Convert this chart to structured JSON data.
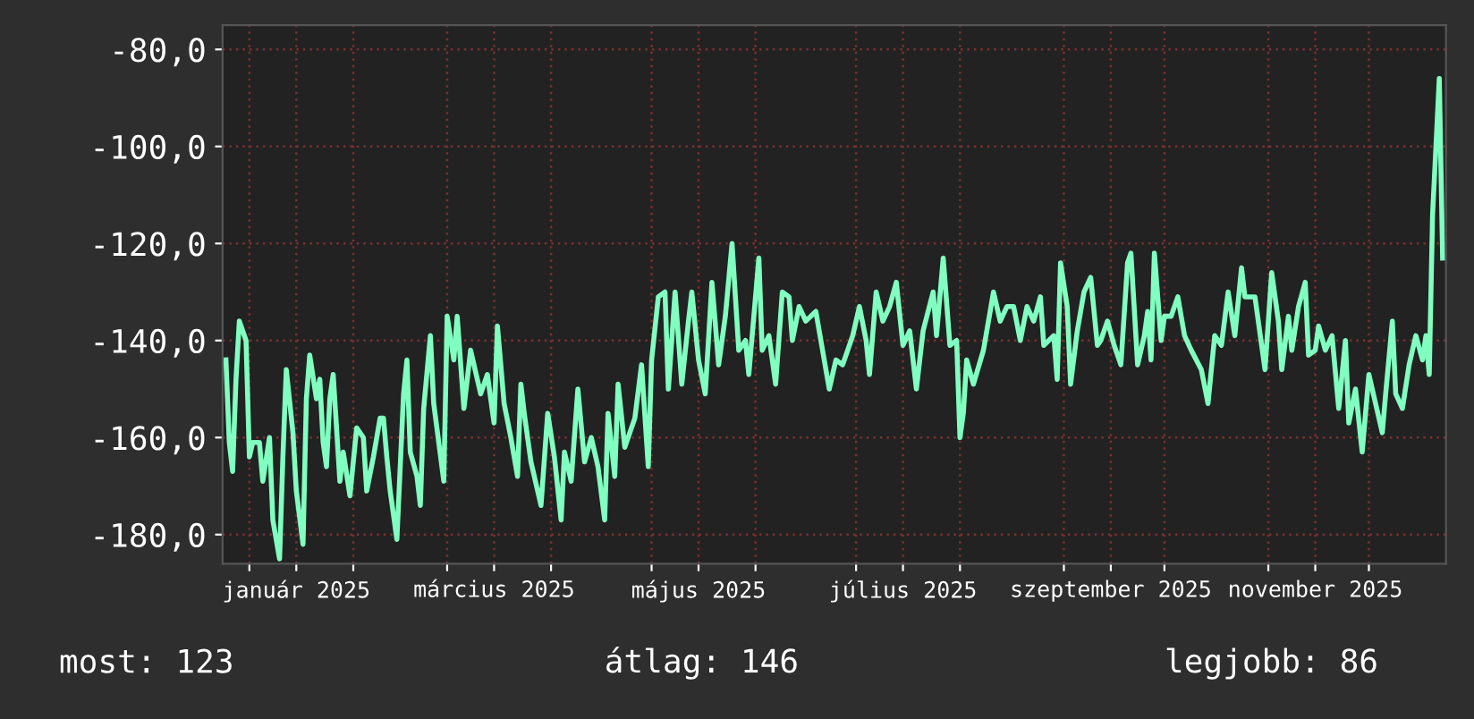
{
  "chart_data": {
    "type": "line",
    "color": "#80ffc0",
    "line_style": "solid",
    "marker": "none",
    "grid": true,
    "xlim": [
      "2024-12-24",
      "2025-12-24"
    ],
    "xticks": [
      {
        "value": "2025-01-01",
        "label": null
      },
      {
        "value": "2025-01-15",
        "label": "január 2025"
      },
      {
        "value": "2025-02-01",
        "label": null
      },
      {
        "value": "2025-03-01",
        "label": null
      },
      {
        "value": "2025-03-15",
        "label": "március 2025"
      },
      {
        "value": "2025-04-01",
        "label": null
      },
      {
        "value": "2025-05-01",
        "label": null
      },
      {
        "value": "2025-05-15",
        "label": "május 2025"
      },
      {
        "value": "2025-06-01",
        "label": null
      },
      {
        "value": "2025-07-01",
        "label": null
      },
      {
        "value": "2025-07-15",
        "label": "július 2025"
      },
      {
        "value": "2025-08-01",
        "label": null
      },
      {
        "value": "2025-09-01",
        "label": null
      },
      {
        "value": "2025-09-15",
        "label": "szeptember 2025"
      },
      {
        "value": "2025-10-01",
        "label": null
      },
      {
        "value": "2025-11-01",
        "label": null
      },
      {
        "value": "2025-11-15",
        "label": "november 2025"
      },
      {
        "value": "2025-12-01",
        "label": null
      }
    ],
    "ylim": [
      -186,
      -75
    ],
    "yticks": [
      {
        "value": -80,
        "label": "-80,0"
      },
      {
        "value": -100,
        "label": "-100,0"
      },
      {
        "value": -120,
        "label": "-120,0"
      },
      {
        "value": -140,
        "label": "-140,0"
      },
      {
        "value": -160,
        "label": "-160,0"
      },
      {
        "value": -180,
        "label": "-180,0"
      }
    ],
    "annotations": [
      "most: 123",
      "átlag: 146",
      "legjobb: 86"
    ],
    "x": [
      "2024-12-25",
      "2024-12-26",
      "2024-12-27",
      "2024-12-28",
      "2024-12-29",
      "2024-12-31",
      "2025-01-01",
      "2025-01-02",
      "2025-01-04",
      "2025-01-05",
      "2025-01-07",
      "2025-01-08",
      "2025-01-10",
      "2025-01-11",
      "2025-01-12",
      "2025-01-14",
      "2025-01-15",
      "2025-01-17",
      "2025-01-18",
      "2025-01-19",
      "2025-01-21",
      "2025-01-22",
      "2025-01-23",
      "2025-01-24",
      "2025-01-25",
      "2025-01-26",
      "2025-01-28",
      "2025-01-29",
      "2025-01-31",
      "2025-02-02",
      "2025-02-04",
      "2025-02-05",
      "2025-02-07",
      "2025-02-09",
      "2025-02-10",
      "2025-02-11",
      "2025-02-12",
      "2025-02-14",
      "2025-02-16",
      "2025-02-17",
      "2025-02-18",
      "2025-02-20",
      "2025-02-21",
      "2025-02-22",
      "2025-02-24",
      "2025-02-25",
      "2025-02-28",
      "2025-03-01",
      "2025-03-03",
      "2025-03-04",
      "2025-03-06",
      "2025-03-08",
      "2025-03-11",
      "2025-03-13",
      "2025-03-15",
      "2025-03-16",
      "2025-03-18",
      "2025-03-20",
      "2025-03-22",
      "2025-03-23",
      "2025-03-24",
      "2025-03-26",
      "2025-03-29",
      "2025-03-31",
      "2025-04-02",
      "2025-04-04",
      "2025-04-05",
      "2025-04-07",
      "2025-04-09",
      "2025-04-11",
      "2025-04-13",
      "2025-04-15",
      "2025-04-17",
      "2025-04-18",
      "2025-04-20",
      "2025-04-21",
      "2025-04-23",
      "2025-04-26",
      "2025-04-28",
      "2025-04-30",
      "2025-05-01",
      "2025-05-03",
      "2025-05-05",
      "2025-05-06",
      "2025-05-08",
      "2025-05-10",
      "2025-05-12",
      "2025-05-13",
      "2025-05-15",
      "2025-05-17",
      "2025-05-19",
      "2025-05-21",
      "2025-05-23",
      "2025-05-25",
      "2025-05-27",
      "2025-05-29",
      "2025-05-30",
      "2025-06-02",
      "2025-06-03",
      "2025-06-05",
      "2025-06-07",
      "2025-06-09",
      "2025-06-11",
      "2025-06-12",
      "2025-06-14",
      "2025-06-16",
      "2025-06-19",
      "2025-06-21",
      "2025-06-23",
      "2025-06-25",
      "2025-06-27",
      "2025-06-30",
      "2025-07-02",
      "2025-07-04",
      "2025-07-05",
      "2025-07-07",
      "2025-07-09",
      "2025-07-11",
      "2025-07-13",
      "2025-07-15",
      "2025-07-17",
      "2025-07-19",
      "2025-07-21",
      "2025-07-24",
      "2025-07-25",
      "2025-07-27",
      "2025-07-29",
      "2025-07-31",
      "2025-08-01",
      "2025-08-02",
      "2025-08-03",
      "2025-08-05",
      "2025-08-08",
      "2025-08-09",
      "2025-08-11",
      "2025-08-13",
      "2025-08-15",
      "2025-08-17",
      "2025-08-19",
      "2025-08-21",
      "2025-08-23",
      "2025-08-25",
      "2025-08-26",
      "2025-08-29",
      "2025-08-30",
      "2025-08-31",
      "2025-09-02",
      "2025-09-03",
      "2025-09-05",
      "2025-09-07",
      "2025-09-09",
      "2025-09-11",
      "2025-09-12",
      "2025-09-14",
      "2025-09-16",
      "2025-09-18",
      "2025-09-20",
      "2025-09-21",
      "2025-09-23",
      "2025-09-25",
      "2025-09-26",
      "2025-09-27",
      "2025-09-28",
      "2025-09-30",
      "2025-10-01",
      "2025-10-03",
      "2025-10-05",
      "2025-10-07",
      "2025-10-09",
      "2025-10-12",
      "2025-10-14",
      "2025-10-16",
      "2025-10-18",
      "2025-10-20",
      "2025-10-22",
      "2025-10-24",
      "2025-10-25",
      "2025-10-28",
      "2025-10-30",
      "2025-10-31",
      "2025-11-02",
      "2025-11-04",
      "2025-11-05",
      "2025-11-07",
      "2025-11-08",
      "2025-11-10",
      "2025-11-12",
      "2025-11-13",
      "2025-11-15",
      "2025-11-16",
      "2025-11-18",
      "2025-11-20",
      "2025-11-22",
      "2025-11-24",
      "2025-11-25",
      "2025-11-27",
      "2025-11-29",
      "2025-12-01",
      "2025-12-03",
      "2025-12-05",
      "2025-12-06",
      "2025-12-08",
      "2025-12-09",
      "2025-12-11",
      "2025-12-13",
      "2025-12-15",
      "2025-12-17",
      "2025-12-18",
      "2025-12-19",
      "2025-12-20",
      "2025-12-22",
      "2025-12-23"
    ],
    "values": [
      -144,
      -161,
      -167,
      -148,
      -136,
      -140,
      -164,
      -161,
      -161,
      -169,
      -160,
      -177,
      -185,
      -164,
      -146,
      -159,
      -171,
      -182,
      -152,
      -143,
      -152,
      -148,
      -161,
      -166,
      -152,
      -147,
      -169,
      -163,
      -172,
      -158,
      -160,
      -171,
      -164,
      -156,
      -156,
      -164,
      -171,
      -181,
      -151,
      -144,
      -163,
      -168,
      -174,
      -154,
      -139,
      -153,
      -169,
      -135,
      -144,
      -135,
      -154,
      -142,
      -151,
      -147,
      -157,
      -137,
      -153,
      -160,
      -168,
      -149,
      -155,
      -165,
      -174,
      -155,
      -164,
      -177,
      -163,
      -169,
      -150,
      -165,
      -160,
      -166,
      -177,
      -155,
      -168,
      -149,
      -162,
      -156,
      -145,
      -166,
      -144,
      -131,
      -130,
      -150,
      -130,
      -149,
      -136,
      -130,
      -144,
      -151,
      -128,
      -145,
      -135,
      -120,
      -142,
      -140,
      -147,
      -123,
      -142,
      -139,
      -149,
      -130,
      -131,
      -140,
      -133,
      -136,
      -134,
      -142,
      -150,
      -144,
      -145,
      -139,
      -133,
      -140,
      -147,
      -130,
      -136,
      -133,
      -128,
      -141,
      -138,
      -150,
      -138,
      -130,
      -139,
      -123,
      -141,
      -140,
      -160,
      -155,
      -144,
      -149,
      -142,
      -138,
      -130,
      -136,
      -133,
      -133,
      -140,
      -133,
      -136,
      -131,
      -141,
      -139,
      -148,
      -124,
      -133,
      -149,
      -138,
      -130,
      -127,
      -141,
      -140,
      -136,
      -141,
      -145,
      -124,
      -122,
      -145,
      -139,
      -134,
      -144,
      -122,
      -140,
      -135,
      -135,
      -131,
      -139,
      -142,
      -146,
      -153,
      -139,
      -141,
      -130,
      -139,
      -125,
      -131,
      -131,
      -141,
      -146,
      -126,
      -136,
      -146,
      -135,
      -142,
      -133,
      -128,
      -143,
      -142,
      -137,
      -142,
      -139,
      -154,
      -140,
      -157,
      -150,
      -163,
      -147,
      -153,
      -159,
      -151,
      -136,
      -151,
      -154,
      -145,
      -139,
      -144,
      -139,
      -147,
      -114,
      -86,
      -123
    ]
  }
}
